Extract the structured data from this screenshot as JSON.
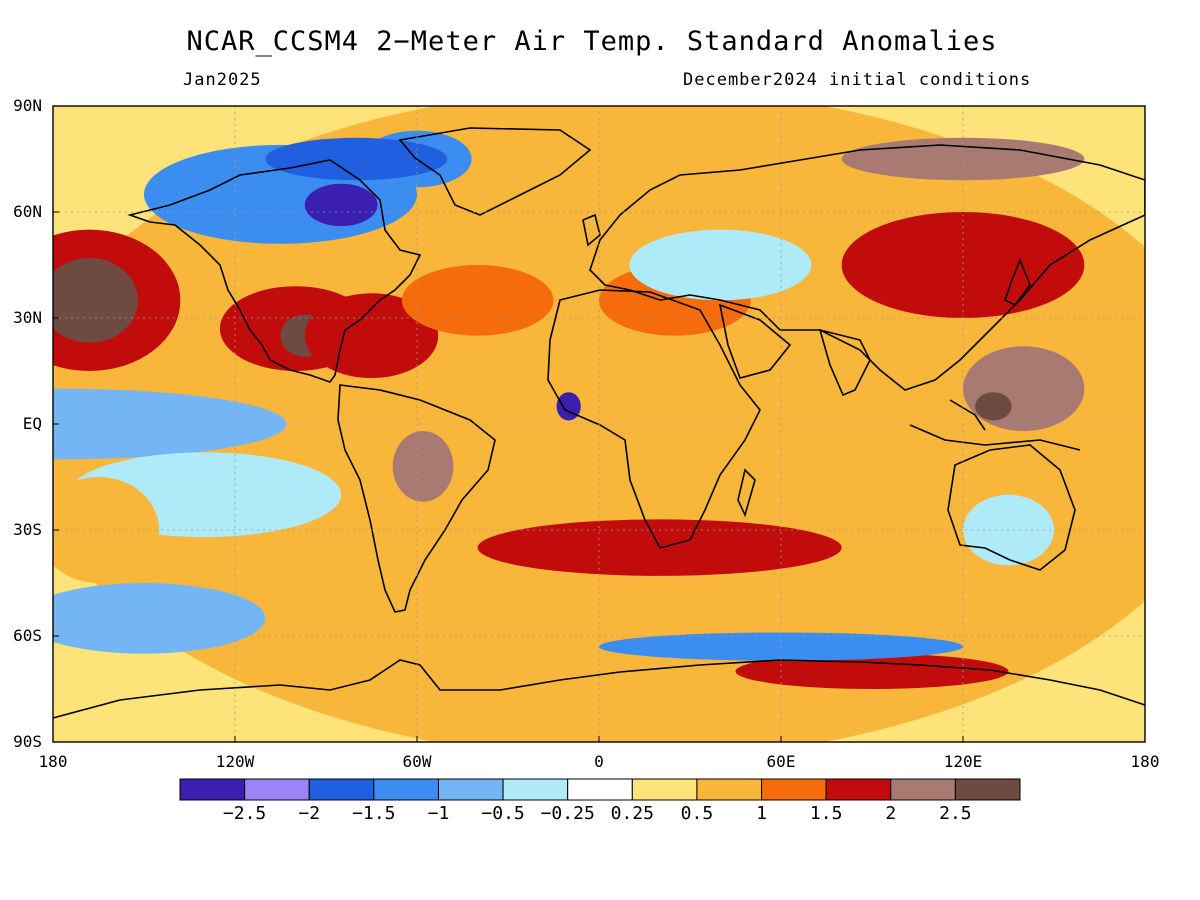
{
  "title": "NCAR_CCSM4 2−Meter Air Temp. Standard Anomalies",
  "valid_month": "Jan2025",
  "init_conditions": "December2024 initial conditions",
  "lat_ticks": [
    {
      "label": "90N",
      "lat": 90
    },
    {
      "label": "60N",
      "lat": 60
    },
    {
      "label": "30N",
      "lat": 30
    },
    {
      "label": "EQ",
      "lat": 0
    },
    {
      "label": "30S",
      "lat": -30
    },
    {
      "label": "60S",
      "lat": -60
    },
    {
      "label": "90S",
      "lat": -90
    }
  ],
  "lon_ticks": [
    {
      "label": "180",
      "lon": -180
    },
    {
      "label": "120W",
      "lon": -120
    },
    {
      "label": "60W",
      "lon": -60
    },
    {
      "label": "0",
      "lon": 0
    },
    {
      "label": "60E",
      "lon": 60
    },
    {
      "label": "120E",
      "lon": 120
    },
    {
      "label": "180",
      "lon": 180
    }
  ],
  "colorbar": {
    "colors": [
      "#3b1fb0",
      "#9d84f5",
      "#1f5fe0",
      "#3b8ef0",
      "#74b5f5",
      "#aeeaf7",
      "#ffffff",
      "#fde37a",
      "#f8b63b",
      "#f66b0c",
      "#c20c0c",
      "#a87a72",
      "#6e4a40"
    ],
    "labels": [
      "−2.5",
      "−2",
      "−1.5",
      "−1",
      "−0.5",
      "−0.25",
      "0.25",
      "0.5",
      "1",
      "1.5",
      "2",
      "2.5"
    ]
  },
  "anomaly_regions": [
    {
      "lon": 10,
      "lat": 0,
      "rx": 200,
      "ry": 95,
      "level": 0.6
    },
    {
      "lon": -178,
      "lat": 0,
      "rx": 75,
      "ry": 10,
      "level": -0.8
    },
    {
      "lon": -130,
      "lat": -20,
      "rx": 45,
      "ry": 12,
      "level": -0.4
    },
    {
      "lon": -150,
      "lat": -55,
      "rx": 40,
      "ry": 10,
      "level": -0.8
    },
    {
      "lon": -165,
      "lat": -30,
      "rx": 20,
      "ry": 15,
      "level": 0.8
    },
    {
      "lon": -168,
      "lat": 35,
      "rx": 30,
      "ry": 20,
      "level": 1.7
    },
    {
      "lon": -168,
      "lat": 35,
      "rx": 16,
      "ry": 12,
      "level": 2.7
    },
    {
      "lon": -105,
      "lat": 65,
      "rx": 45,
      "ry": 14,
      "level": -1.2
    },
    {
      "lon": -85,
      "lat": 62,
      "rx": 12,
      "ry": 6,
      "level": -2.7
    },
    {
      "lon": -60,
      "lat": 75,
      "rx": 18,
      "ry": 8,
      "level": -1.3
    },
    {
      "lon": -100,
      "lat": 27,
      "rx": 25,
      "ry": 12,
      "level": 1.8
    },
    {
      "lon": -97,
      "lat": 25,
      "rx": 8,
      "ry": 6,
      "level": 2.6
    },
    {
      "lon": -75,
      "lat": 25,
      "rx": 22,
      "ry": 12,
      "level": 1.8
    },
    {
      "lon": -40,
      "lat": 35,
      "rx": 25,
      "ry": 10,
      "level": 1.4
    },
    {
      "lon": -10,
      "lat": 5,
      "rx": 4,
      "ry": 4,
      "level": -2.7
    },
    {
      "lon": 25,
      "lat": 35,
      "rx": 25,
      "ry": 10,
      "level": 1.3
    },
    {
      "lon": 40,
      "lat": 45,
      "rx": 30,
      "ry": 10,
      "level": -0.4
    },
    {
      "lon": 120,
      "lat": 45,
      "rx": 40,
      "ry": 15,
      "level": 1.7
    },
    {
      "lon": 140,
      "lat": 10,
      "rx": 20,
      "ry": 12,
      "level": 2.1
    },
    {
      "lon": 130,
      "lat": 5,
      "rx": 6,
      "ry": 4,
      "level": 2.6
    },
    {
      "lon": 135,
      "lat": -30,
      "rx": 15,
      "ry": 10,
      "level": -0.3
    },
    {
      "lon": 90,
      "lat": -70,
      "rx": 45,
      "ry": 5,
      "level": 1.8
    },
    {
      "lon": 60,
      "lat": -63,
      "rx": 60,
      "ry": 4,
      "level": -1.1
    },
    {
      "lon": -80,
      "lat": 75,
      "rx": 30,
      "ry": 6,
      "level": -1.6
    },
    {
      "lon": -58,
      "lat": -12,
      "rx": 10,
      "ry": 10,
      "level": 2.0
    },
    {
      "lon": 120,
      "lat": 75,
      "rx": 40,
      "ry": 6,
      "level": 2.2
    },
    {
      "lon": 20,
      "lat": -35,
      "rx": 60,
      "ry": 8,
      "level": 1.5
    }
  ]
}
